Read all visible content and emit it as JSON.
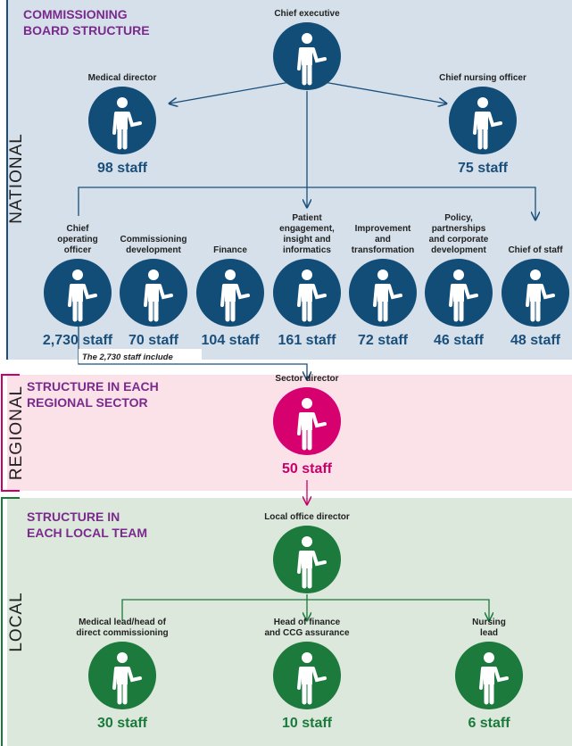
{
  "sections": [
    {
      "name": "NATIONAL",
      "title": [
        "COMMISSIONING",
        "BOARD STRUCTURE"
      ]
    },
    {
      "name": "REGIONAL",
      "title": [
        "STRUCTURE IN EACH",
        "REGIONAL SECTOR"
      ]
    },
    {
      "name": "LOCAL",
      "title": [
        "STRUCTURE IN",
        "EACH LOCAL TEAM"
      ]
    }
  ],
  "nodes": [
    {
      "label": [
        "Chief executive"
      ]
    },
    {
      "label": [
        "Medical director"
      ],
      "staff": "98 staff"
    },
    {
      "label": [
        "Chief nursing officer"
      ],
      "staff": "75 staff"
    },
    {
      "label": [
        "Chief",
        "operating",
        "officer"
      ],
      "staff": "2,730 staff"
    },
    {
      "label": [
        "Commissioning",
        "development"
      ],
      "staff": "70 staff"
    },
    {
      "label": [
        "Finance"
      ],
      "staff": "104 staff"
    },
    {
      "label": [
        "Patient",
        "engagement,",
        "insight and",
        "informatics"
      ],
      "staff": "161 staff"
    },
    {
      "label": [
        "Improvement",
        "and",
        "transformation"
      ],
      "staff": "72 staff"
    },
    {
      "label": [
        "Policy,",
        "partnerships",
        "and corporate",
        "development"
      ],
      "staff": "46 staff"
    },
    {
      "label": [
        "Chief of staff"
      ],
      "staff": "48 staff"
    },
    {
      "label": [
        "Sector director"
      ],
      "staff": "50 staff"
    },
    {
      "label": [
        "Local office director"
      ]
    },
    {
      "label": [
        "Medical lead/head of",
        "direct commissioning"
      ],
      "staff": "30 staff"
    },
    {
      "label": [
        "Head of finance",
        "and CCG assurance"
      ],
      "staff": "10 staff"
    },
    {
      "label": [
        "Nursing",
        "lead"
      ],
      "staff": "6 staff"
    }
  ],
  "note": "The 2,730 staff include"
}
